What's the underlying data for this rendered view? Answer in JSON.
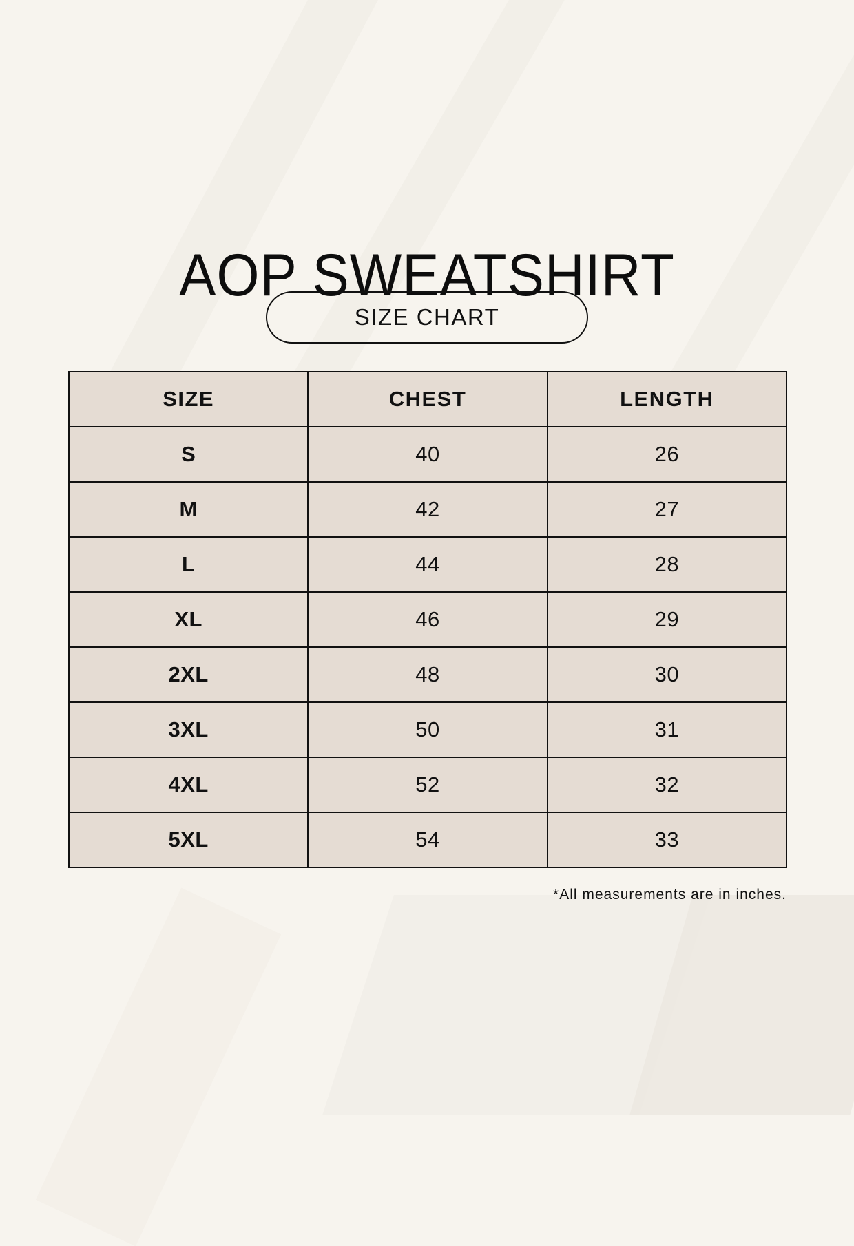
{
  "title": "AOP SWEATSHIRT",
  "subtitle": "SIZE CHART",
  "table": {
    "headers": [
      "SIZE",
      "CHEST",
      "LENGTH"
    ],
    "rows": [
      {
        "size": "S",
        "chest": "40",
        "length": "26"
      },
      {
        "size": "M",
        "chest": "42",
        "length": "27"
      },
      {
        "size": "L",
        "chest": "44",
        "length": "28"
      },
      {
        "size": "XL",
        "chest": "46",
        "length": "29"
      },
      {
        "size": "2XL",
        "chest": "48",
        "length": "30"
      },
      {
        "size": "3XL",
        "chest": "50",
        "length": "31"
      },
      {
        "size": "4XL",
        "chest": "52",
        "length": "32"
      },
      {
        "size": "5XL",
        "chest": "54",
        "length": "33"
      }
    ]
  },
  "footnote": "*All measurements are in inches.",
  "colors": {
    "background": "#f7f4ee",
    "cell_fill": "#e5dcd3",
    "border": "#111111",
    "text": "#111111"
  }
}
